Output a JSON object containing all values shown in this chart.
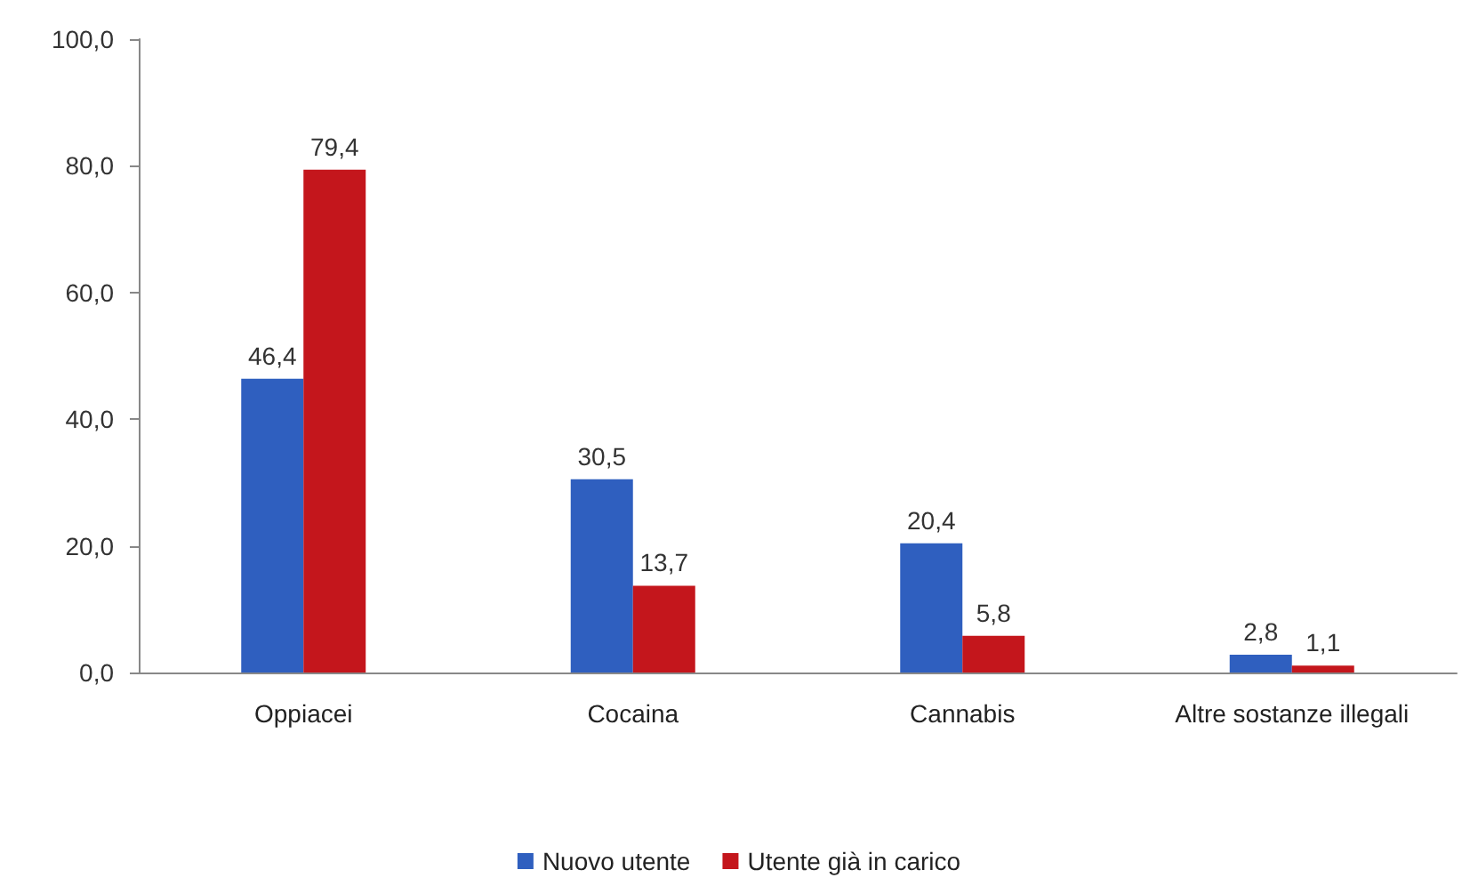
{
  "chart_data": {
    "type": "bar",
    "categories": [
      "Oppiacei",
      "Cocaina",
      "Cannabis",
      "Altre sostanze illegali"
    ],
    "series": [
      {
        "name": "Nuovo utente",
        "color": "#2f5fbf",
        "values": [
          46.4,
          30.5,
          20.4,
          2.8
        ],
        "value_labels": [
          "46,4",
          "30,5",
          "20,4",
          "2,8"
        ]
      },
      {
        "name": "Utente già in carico",
        "color": "#c4161c",
        "values": [
          79.4,
          13.7,
          5.8,
          1.1
        ],
        "value_labels": [
          "79,4",
          "13,7",
          "5,8",
          "1,1"
        ]
      }
    ],
    "ylim": [
      0,
      100
    ],
    "yticks": [
      {
        "value": 0,
        "label": "0,0"
      },
      {
        "value": 20,
        "label": "20,0"
      },
      {
        "value": 40,
        "label": "40,0"
      },
      {
        "value": 60,
        "label": "60,0"
      },
      {
        "value": 80,
        "label": "80,0"
      },
      {
        "value": 100,
        "label": "100,0"
      }
    ],
    "grid": false,
    "legend": "bottom"
  }
}
